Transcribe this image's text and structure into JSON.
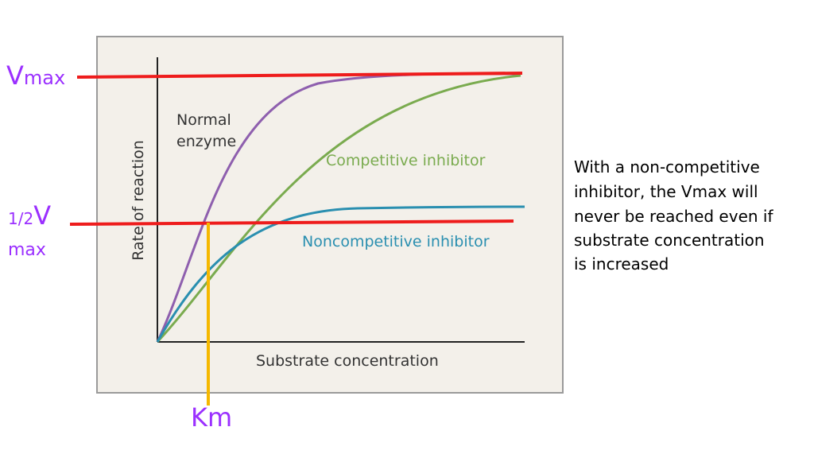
{
  "slide": {
    "vmax_label": {
      "symbol": "V",
      "subscript": "max"
    },
    "half_vmax_label": {
      "fraction": "1/2",
      "symbol": "V",
      "subscript": "max"
    },
    "km_label": "Km",
    "diagram": {
      "y_axis_label": "Rate of reaction",
      "x_axis_label": "Substrate concentration",
      "normal_label": [
        "Normal",
        "enzyme"
      ],
      "competitive_label": "Competitive inhibitor",
      "noncompetitive_label": "Noncompetitive inhibitor"
    },
    "note": [
      "With a non-competitive",
      "inhibitor, the Vmax will",
      "never be reached even if",
      "substrate concentration",
      "is increased"
    ]
  }
}
